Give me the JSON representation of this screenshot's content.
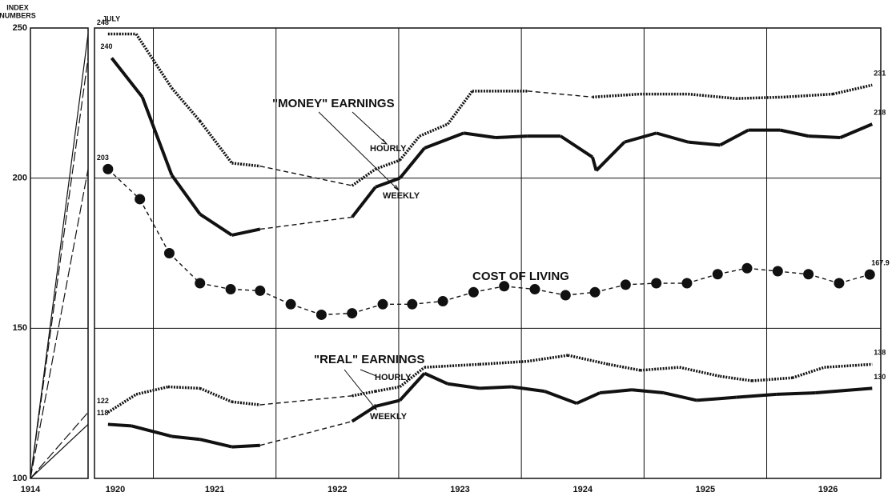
{
  "chart_data": {
    "type": "line",
    "ylabel_lines": [
      "INDEX",
      "NUMBERS"
    ],
    "note": "JULY",
    "base": {
      "label": "1914",
      "value": 100
    },
    "xlim": [
      1920.52,
      1926.93
    ],
    "ylim": [
      100,
      250
    ],
    "yticks": [
      100,
      150,
      200,
      250
    ],
    "xgrid": [
      1921,
      1922,
      1923,
      1924,
      1925,
      1926
    ],
    "xticks": [
      {
        "value": 1920.69,
        "label": "1920"
      },
      {
        "value": 1921.5,
        "label": "1921"
      },
      {
        "value": 1922.5,
        "label": "1922"
      },
      {
        "value": 1923.5,
        "label": "1923"
      },
      {
        "value": 1924.5,
        "label": "1924"
      },
      {
        "value": 1925.5,
        "label": "1925"
      },
      {
        "value": 1926.5,
        "label": "1926"
      }
    ],
    "annotations": [
      "\"MONEY\" EARNINGS",
      "HOURLY",
      "WEEKLY",
      "COST OF LIVING",
      "\"REAL\" EARNINGS",
      "HOURLY",
      "WEEKLY"
    ],
    "series": [
      {
        "style": "dotted",
        "color": "#111",
        "x": [
          1920.63,
          1920.86,
          1921.15,
          1921.38,
          1921.64,
          1921.87,
          1922.62,
          1922.81,
          1923.01,
          1923.17,
          1923.4,
          1923.6,
          1924.05,
          1924.58,
          1924.97,
          1925.36,
          1925.75,
          1926.14,
          1926.54,
          1926.86
        ],
        "values": [
          248,
          248,
          230,
          219,
          205,
          204,
          197.5,
          203,
          206,
          214,
          218,
          229,
          229,
          227,
          228,
          228,
          226.5,
          227,
          228,
          231
        ]
      },
      {
        "style": "solid",
        "color": "#111",
        "x": [
          1920.66,
          1920.91,
          1921.15,
          1921.38,
          1921.64,
          1921.87,
          1922.62,
          1922.81,
          1923.01,
          1923.21,
          1923.53,
          1923.79,
          1924.05,
          1924.32,
          1924.58,
          1924.61,
          1924.84,
          1925.1,
          1925.36,
          1925.62,
          1925.85,
          1926.11,
          1926.34,
          1926.6,
          1926.86
        ],
        "values": [
          240,
          227,
          201,
          188,
          181,
          183,
          187,
          197,
          200,
          210,
          215,
          213.5,
          214,
          214,
          207,
          202.5,
          212,
          215,
          212,
          211,
          216,
          216,
          214,
          213.5,
          218
        ]
      },
      {
        "style": "circles",
        "color": "#111",
        "x": [
          1920.63,
          1920.89,
          1921.13,
          1921.38,
          1921.63,
          1921.87,
          1922.12,
          1922.37,
          1922.62,
          1922.87,
          1923.11,
          1923.36,
          1923.61,
          1923.86,
          1924.11,
          1924.36,
          1924.6,
          1924.85,
          1925.1,
          1925.35,
          1925.6,
          1925.84,
          1926.09,
          1926.34,
          1926.59,
          1926.84
        ],
        "values": [
          203,
          193,
          175,
          165,
          163,
          162.5,
          158,
          154.5,
          155,
          158,
          158,
          159,
          162,
          164,
          163,
          161,
          162,
          164.5,
          165,
          165,
          168,
          170,
          169,
          168,
          165,
          167.9
        ]
      },
      {
        "style": "dotted",
        "color": "#111",
        "x": [
          1920.63,
          1920.86,
          1921.12,
          1921.38,
          1921.64,
          1921.87,
          1922.62,
          1922.81,
          1923.01,
          1923.21,
          1923.66,
          1924.05,
          1924.38,
          1924.71,
          1924.97,
          1925.29,
          1925.62,
          1925.88,
          1926.21,
          1926.47,
          1926.86
        ],
        "values": [
          122,
          128,
          130.5,
          130,
          125.5,
          124.5,
          127.5,
          129,
          130.5,
          137,
          138,
          139,
          141,
          138,
          136,
          137,
          134,
          132.5,
          133.5,
          137,
          138
        ]
      },
      {
        "style": "solid",
        "color": "#111",
        "x": [
          1920.63,
          1920.82,
          1921.15,
          1921.38,
          1921.64,
          1921.87,
          1922.62,
          1922.81,
          1923.01,
          1923.21,
          1923.4,
          1923.66,
          1923.92,
          1924.19,
          1924.45,
          1924.64,
          1924.9,
          1925.16,
          1925.43,
          1925.75,
          1926.08,
          1926.4,
          1926.86
        ],
        "values": [
          118,
          117.5,
          114,
          113,
          110.5,
          111,
          119,
          124,
          126,
          135,
          131.5,
          130,
          130.5,
          129,
          125,
          128.5,
          129.5,
          128.5,
          126,
          127,
          128,
          128.5,
          130
        ]
      }
    ]
  }
}
